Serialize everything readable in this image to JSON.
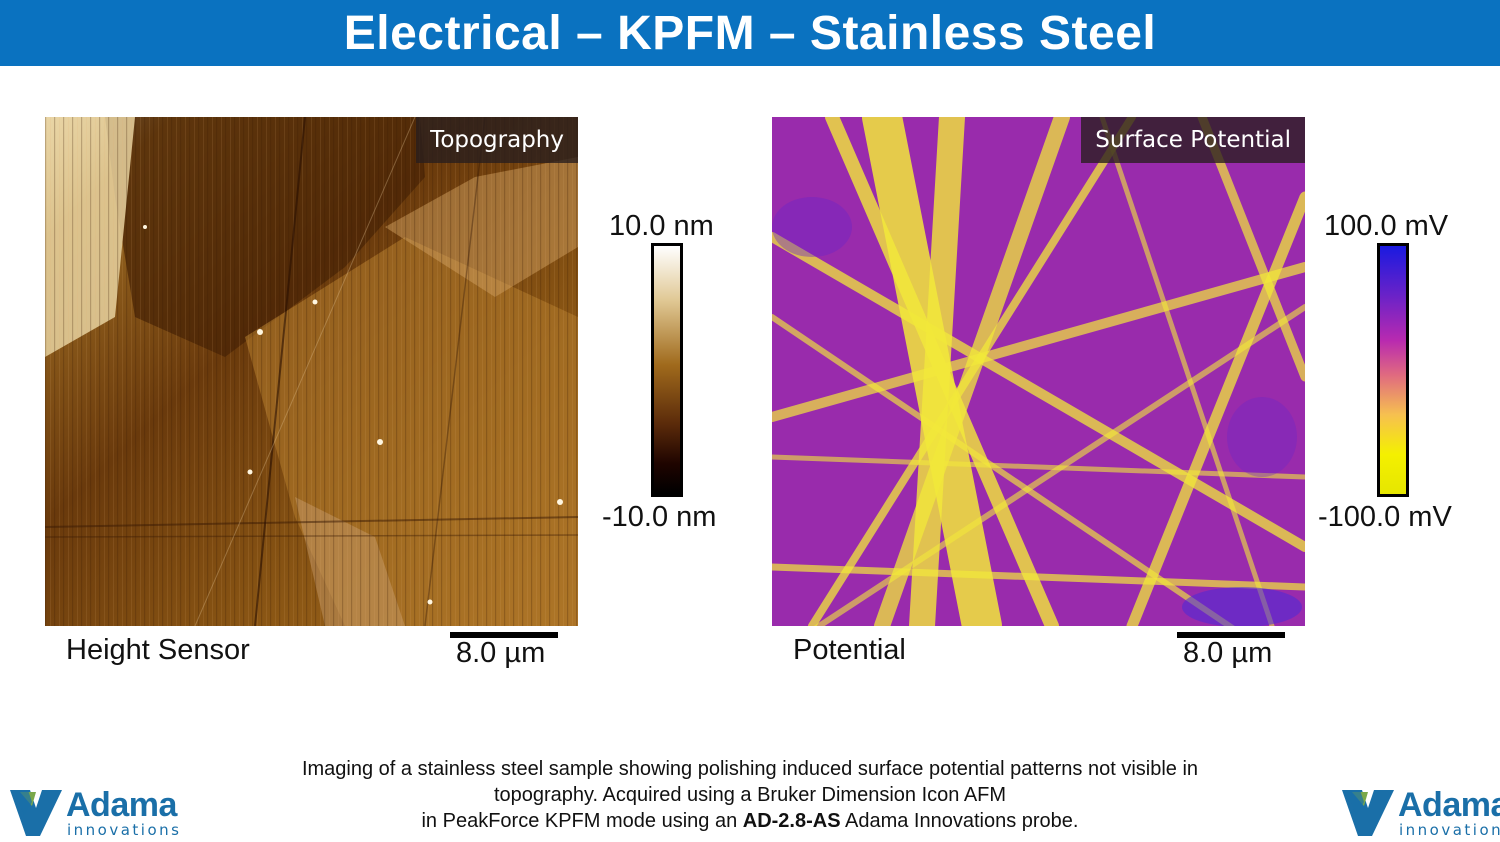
{
  "title": "Electrical – KPFM – Stainless Steel",
  "panels": [
    {
      "label": "Topography",
      "channel": "Height Sensor",
      "scale_bar": "8.0 µm",
      "colorbar_max": "10.0 nm",
      "colorbar_min": "-10.0 nm"
    },
    {
      "label": "Surface Potential",
      "channel": "Potential",
      "scale_bar": "8.0 µm",
      "colorbar_max": "100.0 mV",
      "colorbar_min": "-100.0 mV"
    }
  ],
  "caption": {
    "line1": "Imaging of a stainless steel sample showing polishing induced surface potential patterns not visible in",
    "line2": "topography. Acquired using a Bruker Dimension Icon AFM",
    "line3_pre": "in PeakForce KPFM mode using an ",
    "line3_bold": "AD-2.8-AS",
    "line3_post": " Adama Innovations probe."
  },
  "logo": {
    "name": "Adama",
    "sub": "innovations",
    "icon": "adama-leaf-icon"
  },
  "colors": {
    "title_bar": "#0a72c0",
    "logo": "#1a6fa8"
  }
}
